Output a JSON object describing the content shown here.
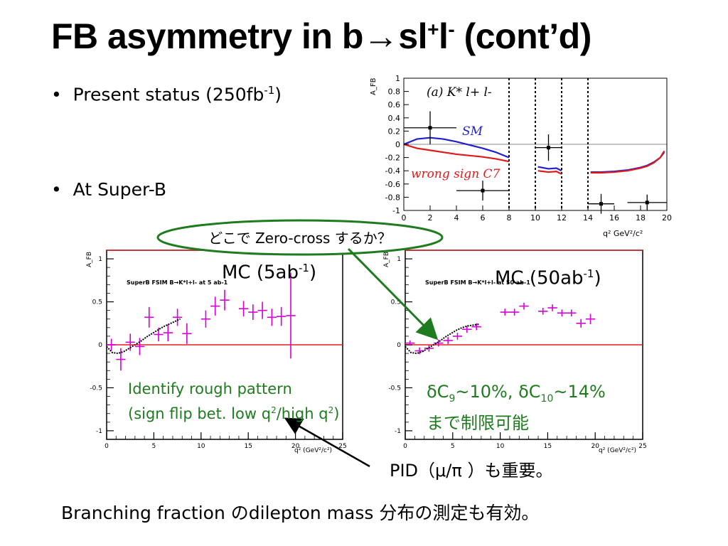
{
  "title": {
    "main": "FB asymmetry in b",
    "arrow": "→",
    "s": "sl",
    "plus": "+",
    "l": "l",
    "minus": "-",
    "tail": " (cont’d)"
  },
  "bullets": [
    {
      "text": "Present status (250fb",
      "sup": "-1",
      "tail": ")"
    },
    {
      "text": "At Super-B"
    }
  ],
  "callout_zero_cross": "どこで Zero-cross するか？",
  "mc_labels": [
    {
      "text": "MC (5ab",
      "sup": "-1",
      "tail": ")"
    },
    {
      "text": "MC (50ab",
      "sup": "-1",
      "tail": ")"
    }
  ],
  "green_note_left": [
    "Identify rough pattern",
    "(sign flip bet. low q",
    "2",
    "/high q",
    "2",
    ")"
  ],
  "green_note_right": {
    "line1_a": "δC",
    "sub1": "9",
    "line1_b": "~10%, δC",
    "sub2": "10",
    "line1_c": "~14%",
    "line2": "まで制限可能"
  },
  "pid_note": "PID（μ/π ）も重要。",
  "footer": "Branching fraction のdilepton mass 分布の測定も有効。",
  "colors": {
    "sm": "#1f1fd0",
    "wrong": "#e01a1a",
    "mc_points": "#d400d4",
    "zero_line": "#e02020",
    "green": "#1e7b1e"
  },
  "chart_data": [
    {
      "type": "line",
      "panel": "(a) K* l+ l-",
      "ylabel": "A_FB",
      "xlabel": "q² GeV²/c²",
      "xlim": [
        0,
        20
      ],
      "ylim": [
        -1,
        1
      ],
      "xticks": [
        0,
        2,
        4,
        6,
        8,
        10,
        12,
        14,
        16,
        18,
        20
      ],
      "yticks": [
        -1,
        -0.8,
        -0.6,
        -0.4,
        -0.2,
        0,
        0.2,
        0.4,
        0.6,
        0.8,
        1
      ],
      "veto_lines_x": [
        8,
        10,
        12,
        14
      ],
      "series": [
        {
          "name": "SM",
          "x": [
            0,
            1,
            2,
            3,
            4,
            5,
            6,
            7,
            8,
            10.2,
            11,
            11.6,
            12,
            14.2,
            15,
            16,
            17,
            18,
            18.5,
            19,
            19.5,
            19.8
          ],
          "y": [
            0.0,
            0.08,
            0.1,
            0.08,
            0.04,
            -0.01,
            -0.06,
            -0.12,
            -0.2,
            -0.34,
            -0.37,
            -0.36,
            -0.4,
            -0.42,
            -0.42,
            -0.41,
            -0.39,
            -0.35,
            -0.32,
            -0.27,
            -0.2,
            -0.12
          ]
        },
        {
          "name": "wrong sign C7",
          "x": [
            0,
            1,
            2,
            3,
            4,
            5,
            6,
            7,
            8,
            10.2,
            11,
            11.6,
            12,
            14.2,
            15,
            16,
            17,
            18,
            18.5,
            19,
            19.5,
            19.8
          ],
          "y": [
            0.0,
            -0.06,
            -0.09,
            -0.12,
            -0.15,
            -0.17,
            -0.19,
            -0.22,
            -0.26,
            -0.4,
            -0.42,
            -0.41,
            -0.45,
            -0.43,
            -0.43,
            -0.42,
            -0.4,
            -0.36,
            -0.33,
            -0.28,
            -0.2,
            -0.1
          ]
        },
        {
          "name": "data",
          "x": [
            2,
            6,
            11,
            15,
            18.5
          ],
          "y": [
            0.25,
            -0.7,
            -0.05,
            -0.9,
            -0.88
          ],
          "xerr": [
            2,
            2,
            1,
            1,
            1.5
          ],
          "yerr": [
            0.25,
            0.15,
            0.2,
            0.15,
            0.12
          ]
        }
      ]
    },
    {
      "type": "scatter",
      "panel_title": "SuperB FSIM B→K*l+l- at 5 ab-1",
      "ylabel": "A_FB",
      "xlabel": "q² (GeV²/c²)",
      "xlim": [
        0,
        25
      ],
      "ylim": [
        -1.1,
        1.1
      ],
      "xticks": [
        0,
        5,
        10,
        15,
        20,
        25
      ],
      "yticks": [
        -1,
        -0.5,
        0,
        0.5,
        1
      ],
      "points": {
        "x": [
          0.5,
          1.5,
          2.5,
          3.5,
          4.5,
          5.5,
          6.5,
          7.5,
          8.5,
          10.5,
          11.5,
          12.5,
          14.5,
          15.5,
          16.5,
          17.5,
          18.5,
          19.5
        ],
        "y": [
          0.0,
          -0.17,
          0.03,
          -0.02,
          0.32,
          0.12,
          0.14,
          0.32,
          0.13,
          0.3,
          0.45,
          0.52,
          0.42,
          0.38,
          0.4,
          0.32,
          0.33,
          0.34
        ],
        "yerr": [
          0.07,
          0.13,
          0.1,
          0.1,
          0.12,
          0.08,
          0.1,
          0.1,
          0.12,
          0.1,
          0.11,
          0.12,
          0.09,
          0.09,
          0.1,
          0.1,
          0.11,
          0.5
        ]
      },
      "fit": {
        "x": [
          0,
          0.6,
          1.2,
          1.8,
          2.4,
          3.0,
          3.6,
          4.2,
          4.8,
          5.4,
          6.0,
          6.6,
          7.2,
          7.8
        ],
        "y": [
          -0.02,
          -0.09,
          -0.1,
          -0.08,
          -0.04,
          0.0,
          0.04,
          0.09,
          0.13,
          0.17,
          0.21,
          0.24,
          0.27,
          0.3
        ]
      }
    },
    {
      "type": "scatter",
      "panel_title": "SuperB FSIM B→K*l+l- at 50 ab-1",
      "ylabel": "A_FB",
      "xlabel": "q² (GeV²/c²)",
      "xlim": [
        0,
        25
      ],
      "ylim": [
        -1.1,
        1.1
      ],
      "xticks": [
        0,
        5,
        10,
        15,
        20,
        25
      ],
      "yticks": [
        -1,
        -0.5,
        0,
        0.5,
        1
      ],
      "points": {
        "x": [
          0.5,
          1.5,
          2.5,
          3.5,
          4.5,
          5.5,
          6.5,
          7.5,
          10.5,
          11.5,
          12.5,
          14.5,
          15.5,
          16.5,
          17.5,
          18.5,
          19.5
        ],
        "y": [
          0.02,
          -0.07,
          -0.04,
          0.02,
          0.05,
          0.1,
          0.18,
          0.21,
          0.38,
          0.38,
          0.45,
          0.39,
          0.43,
          0.37,
          0.37,
          0.25,
          0.3
        ],
        "yerr": [
          0.03,
          0.04,
          0.04,
          0.04,
          0.04,
          0.04,
          0.04,
          0.04,
          0.04,
          0.04,
          0.04,
          0.04,
          0.04,
          0.04,
          0.04,
          0.05,
          0.06
        ]
      },
      "fit": {
        "x": [
          0,
          0.6,
          1.2,
          1.8,
          2.4,
          3.0,
          3.6,
          4.2,
          4.8,
          5.4,
          6.0,
          6.6,
          7.2,
          7.8
        ],
        "y": [
          -0.02,
          -0.09,
          -0.1,
          -0.08,
          -0.04,
          0.0,
          0.04,
          0.09,
          0.13,
          0.17,
          0.2,
          0.22,
          0.23,
          0.24
        ]
      }
    }
  ]
}
